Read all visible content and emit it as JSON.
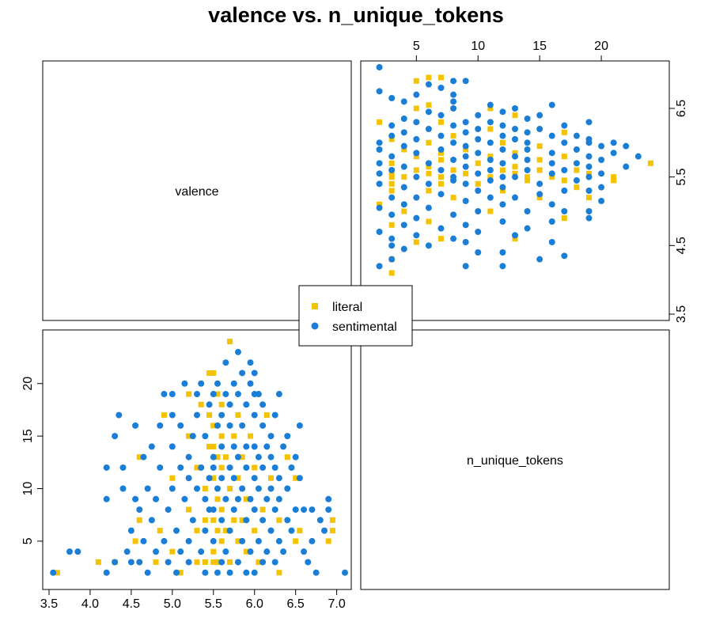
{
  "title": "valence vs. n_unique_tokens",
  "diagonal_labels": {
    "top_left": "valence",
    "bottom_right": "n_unique_tokens"
  },
  "legend": {
    "items": [
      {
        "label": "literal",
        "color": "#F5C200",
        "shape": "square"
      },
      {
        "label": "sentimental",
        "color": "#1A7ED6",
        "shape": "circle"
      }
    ]
  },
  "chart_data": [
    {
      "panel": "bottom-left",
      "type": "scatter",
      "x_variable": "valence",
      "y_variable": "n_unique_tokens",
      "xlim": [
        3.5,
        7.1
      ],
      "ylim": [
        1,
        24.5
      ],
      "x_ticks": [
        3.5,
        4.0,
        4.5,
        5.0,
        5.5,
        6.0,
        6.5,
        7.0
      ],
      "x_tick_labels": [
        "3.5",
        "4.0",
        "4.5",
        "5.0",
        "5.5",
        "6.0",
        "6.5",
        "7.0"
      ],
      "y_ticks": [
        5,
        10,
        15,
        20
      ],
      "y_tick_labels": [
        "5",
        "10",
        "15",
        "20"
      ],
      "grid": false,
      "series": [
        {
          "name": "literal",
          "points": [
            [
              3.6,
              2
            ],
            [
              4.1,
              3
            ],
            [
              4.55,
              5
            ],
            [
              4.6,
              7
            ],
            [
              4.6,
              13
            ],
            [
              4.8,
              3
            ],
            [
              4.85,
              6
            ],
            [
              4.9,
              17
            ],
            [
              5.0,
              4
            ],
            [
              5.1,
              2
            ],
            [
              5.0,
              11
            ],
            [
              5.2,
              8
            ],
            [
              5.2,
              15
            ],
            [
              5.2,
              19
            ],
            [
              5.3,
              3
            ],
            [
              5.3,
              6
            ],
            [
              5.3,
              12
            ],
            [
              5.35,
              18
            ],
            [
              5.4,
              3
            ],
            [
              5.4,
              7
            ],
            [
              5.4,
              10
            ],
            [
              5.45,
              14
            ],
            [
              5.45,
              17
            ],
            [
              5.45,
              21
            ],
            [
              5.5,
              3
            ],
            [
              5.5,
              4
            ],
            [
              5.5,
              7
            ],
            [
              5.5,
              11
            ],
            [
              5.5,
              14
            ],
            [
              5.5,
              16
            ],
            [
              5.5,
              21
            ],
            [
              5.55,
              3
            ],
            [
              5.55,
              6
            ],
            [
              5.55,
              9
            ],
            [
              5.55,
              13
            ],
            [
              5.55,
              19
            ],
            [
              5.6,
              5
            ],
            [
              5.6,
              8
            ],
            [
              5.6,
              12
            ],
            [
              5.6,
              15
            ],
            [
              5.6,
              18
            ],
            [
              5.65,
              6
            ],
            [
              5.65,
              13
            ],
            [
              5.7,
              24
            ],
            [
              5.7,
              3
            ],
            [
              5.7,
              10
            ],
            [
              5.75,
              7
            ],
            [
              5.75,
              15
            ],
            [
              5.8,
              5
            ],
            [
              5.8,
              11
            ],
            [
              5.8,
              17
            ],
            [
              5.85,
              7
            ],
            [
              5.85,
              13
            ],
            [
              5.9,
              4
            ],
            [
              5.9,
              9
            ],
            [
              5.95,
              15
            ],
            [
              6.0,
              6
            ],
            [
              6.0,
              12
            ],
            [
              6.05,
              3
            ],
            [
              6.1,
              8
            ],
            [
              6.15,
              17
            ],
            [
              6.2,
              11
            ],
            [
              6.3,
              2
            ],
            [
              6.3,
              7
            ],
            [
              6.4,
              13
            ],
            [
              6.5,
              5
            ],
            [
              6.5,
              11
            ],
            [
              6.55,
              6
            ],
            [
              6.9,
              5
            ],
            [
              6.95,
              7
            ],
            [
              6.95,
              6
            ],
            [
              4.3,
              3
            ]
          ]
        },
        {
          "name": "sentimental",
          "points": [
            [
              3.55,
              2
            ],
            [
              3.75,
              4
            ],
            [
              3.85,
              4
            ],
            [
              4.2,
              2
            ],
            [
              4.2,
              9
            ],
            [
              4.2,
              12
            ],
            [
              4.3,
              3
            ],
            [
              4.3,
              15
            ],
            [
              4.35,
              17
            ],
            [
              4.4,
              10
            ],
            [
              4.4,
              12
            ],
            [
              4.45,
              4
            ],
            [
              4.5,
              3
            ],
            [
              4.5,
              6
            ],
            [
              4.55,
              9
            ],
            [
              4.55,
              16
            ],
            [
              4.6,
              3
            ],
            [
              4.6,
              8
            ],
            [
              4.65,
              5
            ],
            [
              4.65,
              13
            ],
            [
              4.7,
              2
            ],
            [
              4.7,
              10
            ],
            [
              4.75,
              7
            ],
            [
              4.75,
              14
            ],
            [
              4.8,
              4
            ],
            [
              4.8,
              9
            ],
            [
              4.85,
              12
            ],
            [
              4.85,
              16
            ],
            [
              4.9,
              19
            ],
            [
              4.9,
              5
            ],
            [
              4.95,
              3
            ],
            [
              4.95,
              8
            ],
            [
              5.0,
              10
            ],
            [
              5.0,
              14
            ],
            [
              5.0,
              17
            ],
            [
              5.0,
              19
            ],
            [
              5.05,
              2
            ],
            [
              5.05,
              6
            ],
            [
              5.1,
              4
            ],
            [
              5.1,
              12
            ],
            [
              5.1,
              16
            ],
            [
              5.15,
              9
            ],
            [
              5.15,
              20
            ],
            [
              5.2,
              3
            ],
            [
              5.2,
              5
            ],
            [
              5.2,
              11
            ],
            [
              5.2,
              13
            ],
            [
              5.25,
              7
            ],
            [
              5.25,
              15
            ],
            [
              5.3,
              10
            ],
            [
              5.3,
              17
            ],
            [
              5.3,
              19
            ],
            [
              5.35,
              4
            ],
            [
              5.35,
              12
            ],
            [
              5.35,
              20
            ],
            [
              5.4,
              2
            ],
            [
              5.4,
              6
            ],
            [
              5.4,
              9
            ],
            [
              5.4,
              15
            ],
            [
              5.45,
              8
            ],
            [
              5.45,
              11
            ],
            [
              5.45,
              18
            ],
            [
              5.5,
              5
            ],
            [
              5.5,
              12
            ],
            [
              5.5,
              13
            ],
            [
              5.5,
              19
            ],
            [
              5.55,
              2
            ],
            [
              5.55,
              10
            ],
            [
              5.55,
              16
            ],
            [
              5.55,
              20
            ],
            [
              5.6,
              3
            ],
            [
              5.6,
              7
            ],
            [
              5.6,
              11
            ],
            [
              5.6,
              14
            ],
            [
              5.6,
              17
            ],
            [
              5.65,
              4
            ],
            [
              5.65,
              9
            ],
            [
              5.65,
              19
            ],
            [
              5.65,
              22
            ],
            [
              5.7,
              2
            ],
            [
              5.7,
              6
            ],
            [
              5.7,
              12
            ],
            [
              5.7,
              16
            ],
            [
              5.7,
              18
            ],
            [
              5.75,
              8
            ],
            [
              5.75,
              11
            ],
            [
              5.75,
              14
            ],
            [
              5.75,
              20
            ],
            [
              5.8,
              23
            ],
            [
              5.8,
              3
            ],
            [
              5.8,
              9
            ],
            [
              5.8,
              13
            ],
            [
              5.8,
              19
            ],
            [
              5.85,
              5
            ],
            [
              5.85,
              10
            ],
            [
              5.85,
              16
            ],
            [
              5.85,
              21
            ],
            [
              5.9,
              2
            ],
            [
              5.9,
              7
            ],
            [
              5.9,
              12
            ],
            [
              5.9,
              14
            ],
            [
              5.9,
              18
            ],
            [
              5.95,
              4
            ],
            [
              5.95,
              9
            ],
            [
              5.95,
              20
            ],
            [
              5.95,
              22
            ],
            [
              6.0,
              2
            ],
            [
              6.0,
              8
            ],
            [
              6.0,
              11
            ],
            [
              6.0,
              14
            ],
            [
              6.0,
              17
            ],
            [
              6.0,
              21
            ],
            [
              6.05,
              5
            ],
            [
              6.05,
              10
            ],
            [
              6.05,
              13
            ],
            [
              6.05,
              19
            ],
            [
              6.1,
              3
            ],
            [
              6.1,
              7
            ],
            [
              6.1,
              12
            ],
            [
              6.1,
              16
            ],
            [
              6.1,
              18
            ],
            [
              6.15,
              4
            ],
            [
              6.15,
              9
            ],
            [
              6.15,
              14
            ],
            [
              6.2,
              6
            ],
            [
              6.2,
              10
            ],
            [
              6.2,
              13
            ],
            [
              6.2,
              15
            ],
            [
              6.25,
              3
            ],
            [
              6.25,
              8
            ],
            [
              6.25,
              12
            ],
            [
              6.25,
              17
            ],
            [
              6.3,
              5
            ],
            [
              6.3,
              9
            ],
            [
              6.3,
              11
            ],
            [
              6.3,
              19
            ],
            [
              6.35,
              4
            ],
            [
              6.35,
              14
            ],
            [
              6.4,
              7
            ],
            [
              6.4,
              10
            ],
            [
              6.4,
              15
            ],
            [
              6.45,
              6
            ],
            [
              6.45,
              12
            ],
            [
              6.5,
              8
            ],
            [
              6.5,
              13
            ],
            [
              6.55,
              16
            ],
            [
              6.55,
              11
            ],
            [
              6.6,
              4
            ],
            [
              6.6,
              8
            ],
            [
              6.65,
              3
            ],
            [
              6.7,
              5
            ],
            [
              6.7,
              8
            ],
            [
              6.75,
              2
            ],
            [
              6.8,
              7
            ],
            [
              6.85,
              6
            ],
            [
              6.9,
              9
            ],
            [
              6.9,
              8
            ],
            [
              7.1,
              2
            ],
            [
              6.0,
              19
            ],
            [
              5.5,
              8
            ]
          ]
        }
      ]
    },
    {
      "panel": "top-right",
      "type": "scatter",
      "x_variable": "n_unique_tokens",
      "y_variable": "valence",
      "xlim": [
        1,
        25
      ],
      "ylim": [
        3.5,
        7.1
      ],
      "x_ticks": [
        5,
        10,
        15,
        20
      ],
      "x_tick_labels": [
        "5",
        "10",
        "15",
        "20"
      ],
      "y_ticks": [
        3.5,
        4.5,
        5.5,
        6.5
      ],
      "y_tick_labels": [
        "3.5",
        "4.5",
        "5.5",
        "6.5"
      ],
      "grid": false,
      "series": [
        {
          "name": "literal",
          "mirror_of_panel": "bottom-left"
        },
        {
          "name": "sentimental",
          "mirror_of_panel": "bottom-left"
        }
      ]
    }
  ]
}
